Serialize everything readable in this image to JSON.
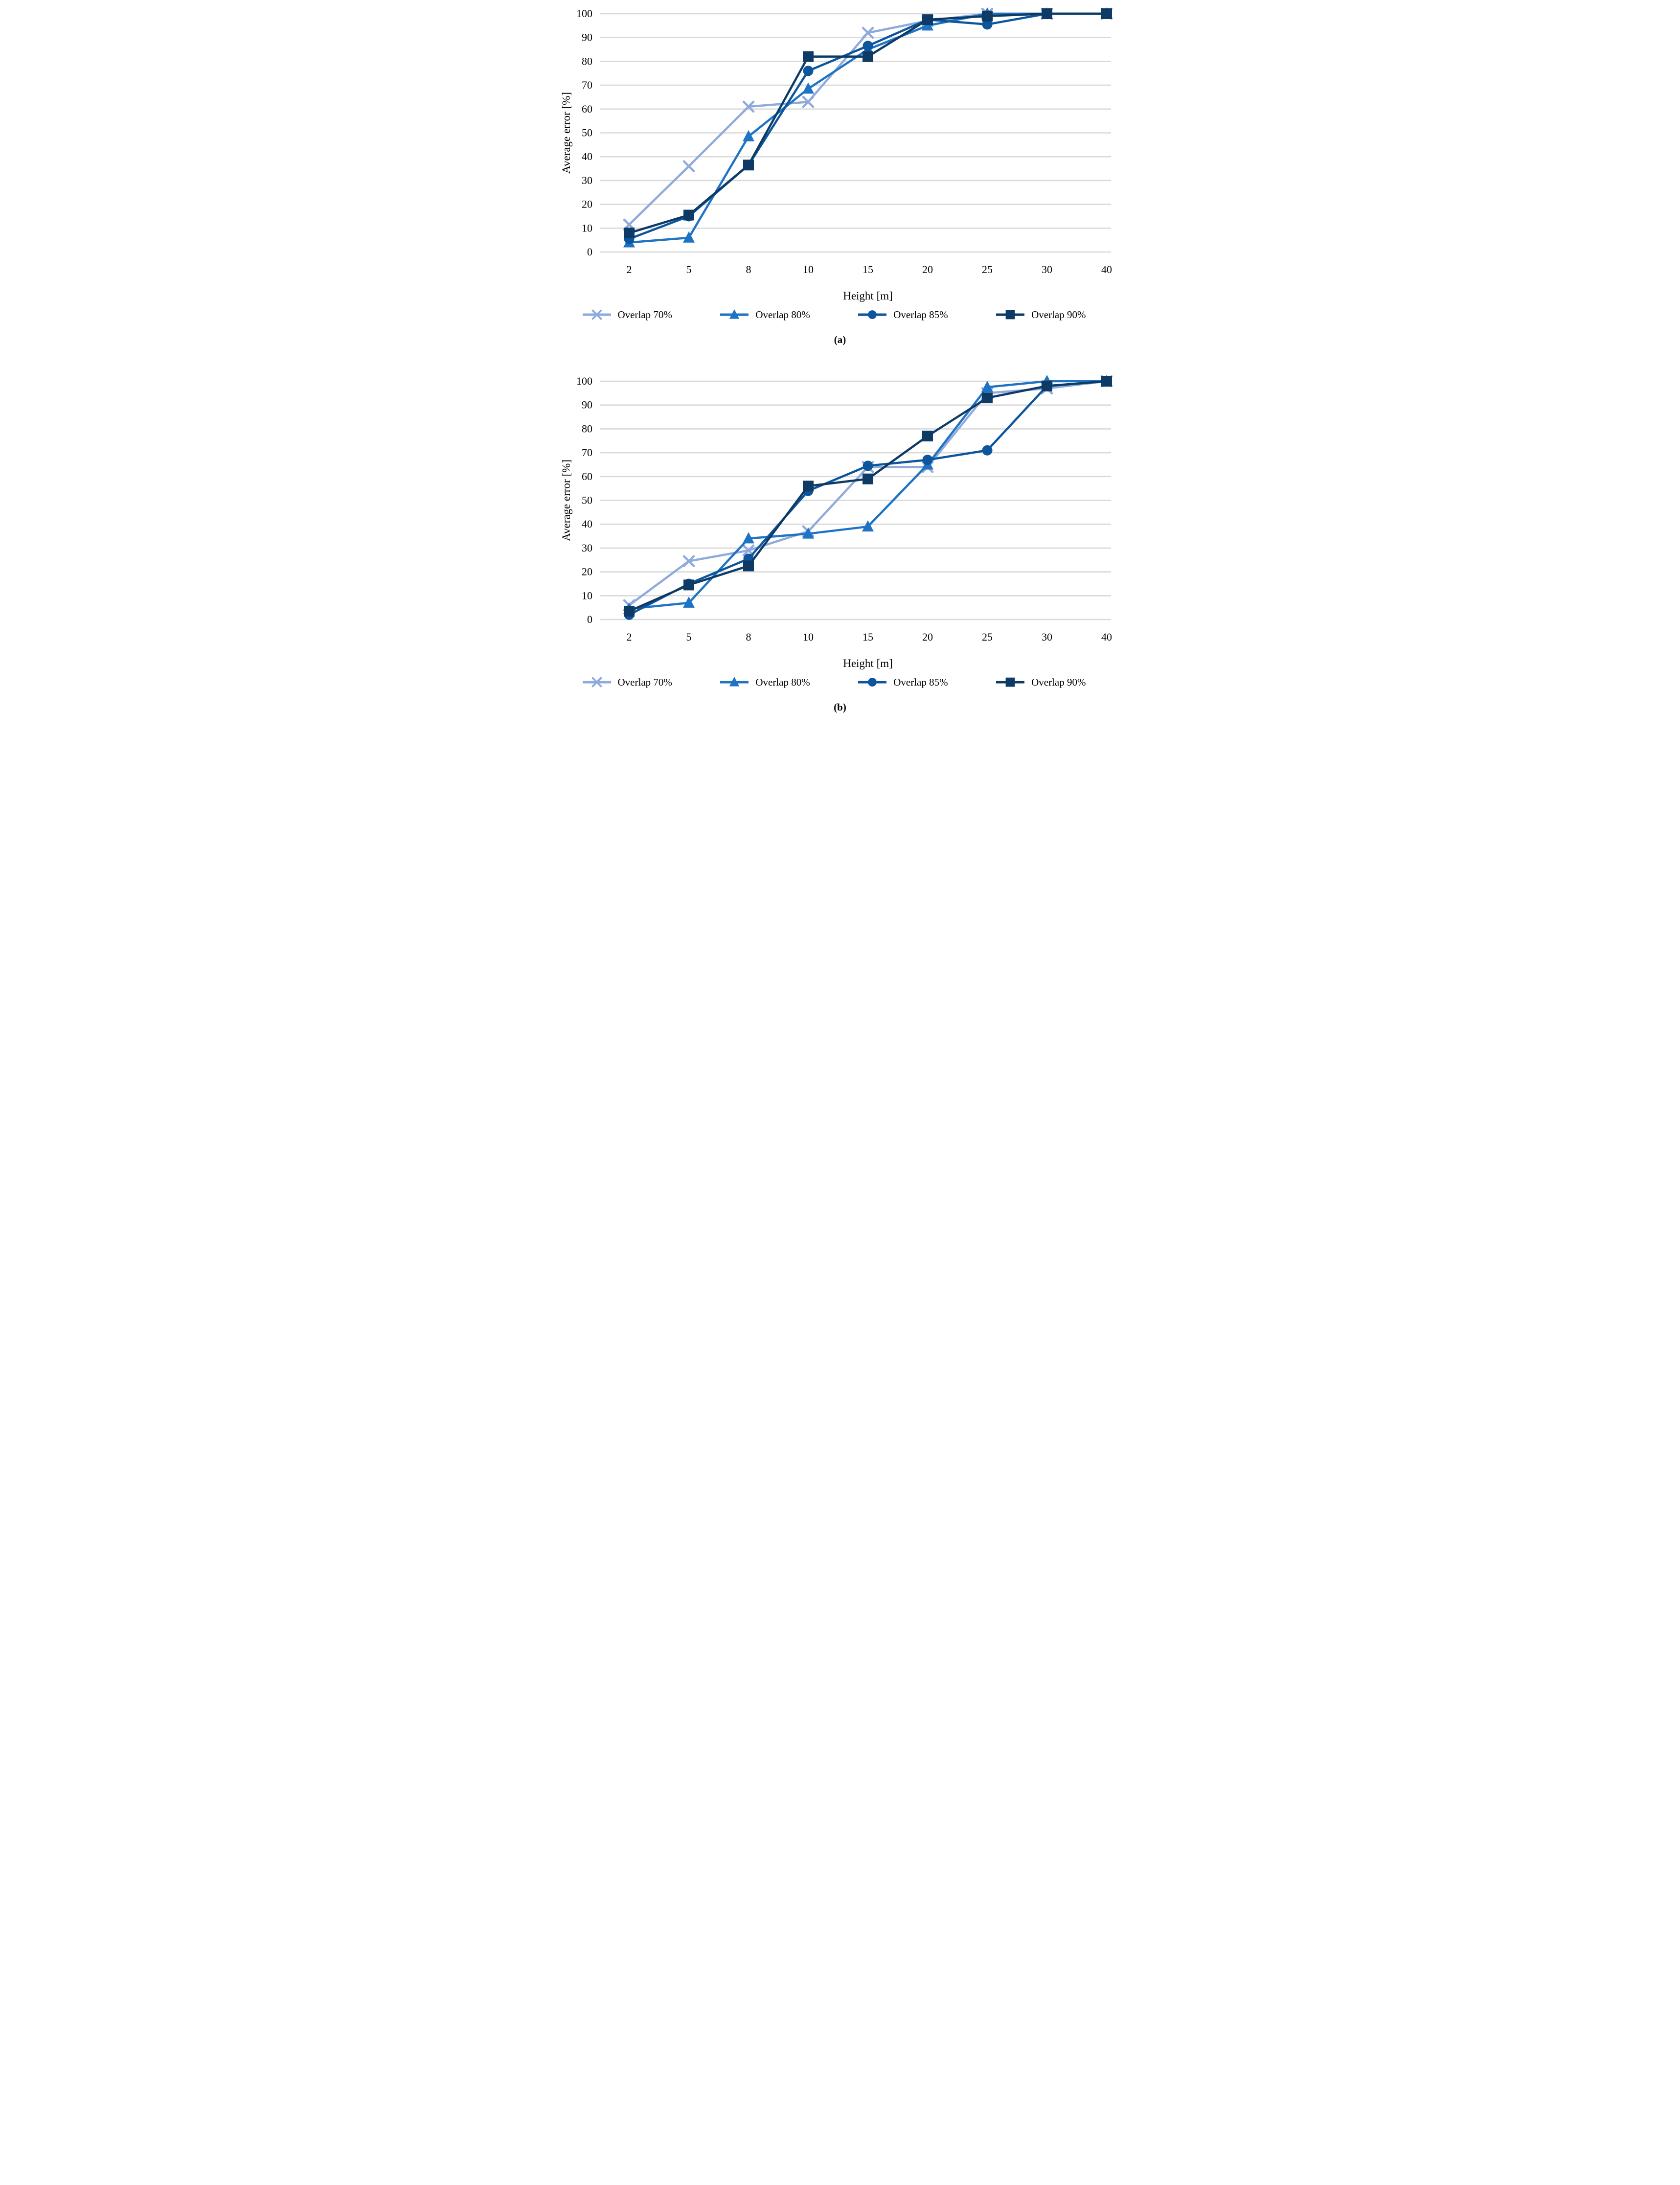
{
  "figure": {
    "grid_color": "#D9D9D9",
    "text_color": "#000000",
    "y_tick_labels": [
      "0",
      "10",
      "20",
      "30",
      "40",
      "50",
      "60",
      "70",
      "80",
      "90",
      "100"
    ],
    "x_tick_labels": [
      "2",
      "5",
      "8",
      "10",
      "15",
      "20",
      "25",
      "30",
      "40"
    ]
  },
  "chart_data": [
    {
      "type": "line",
      "caption": "(a)",
      "xlabel": "Height [m]",
      "ylabel": "Average error [%]",
      "categories": [
        2,
        5,
        8,
        10,
        15,
        20,
        25,
        30,
        40
      ],
      "ylim": [
        0,
        100
      ],
      "ytick_step": 10,
      "grid": "horizontal",
      "legend_position": "bottom",
      "series": [
        {
          "name": "Overlap 70%",
          "marker": "x",
          "color": "#8FAADC",
          "values": [
            11.5,
            36,
            61,
            63,
            92,
            97,
            100,
            100,
            100
          ]
        },
        {
          "name": "Overlap 80%",
          "marker": "triangle",
          "color": "#1E73C4",
          "values": [
            4,
            6,
            48.5,
            68.5,
            85,
            95,
            100,
            100,
            100
          ]
        },
        {
          "name": "Overlap 85%",
          "marker": "circle",
          "color": "#0D559C",
          "values": [
            5.5,
            15,
            36.5,
            76,
            86.5,
            97.5,
            95.5,
            100,
            100
          ]
        },
        {
          "name": "Overlap 90%",
          "marker": "square",
          "color": "#0D3B66",
          "values": [
            8,
            15.5,
            36.5,
            82,
            82,
            97.5,
            99,
            100,
            100
          ]
        }
      ]
    },
    {
      "type": "line",
      "caption": "(b)",
      "xlabel": "Height [m]",
      "ylabel": "Average error [%]",
      "categories": [
        2,
        5,
        8,
        10,
        15,
        20,
        25,
        30,
        40
      ],
      "ylim": [
        0,
        100
      ],
      "ytick_step": 10,
      "grid": "horizontal",
      "legend_position": "bottom",
      "series": [
        {
          "name": "Overlap 70%",
          "marker": "x",
          "color": "#8FAADC",
          "values": [
            6,
            24.5,
            29,
            37,
            64,
            64,
            95,
            97,
            100
          ]
        },
        {
          "name": "Overlap 80%",
          "marker": "triangle",
          "color": "#1E73C4",
          "values": [
            4.5,
            7,
            34,
            36,
            39,
            65,
            97.5,
            100,
            100
          ]
        },
        {
          "name": "Overlap 85%",
          "marker": "circle",
          "color": "#0D559C",
          "values": [
            2,
            15,
            25.5,
            54,
            64.5,
            67,
            71,
            98,
            100
          ]
        },
        {
          "name": "Overlap 90%",
          "marker": "square",
          "color": "#0D3B66",
          "values": [
            3.5,
            14.5,
            22.5,
            56,
            59,
            77,
            93,
            98,
            100
          ]
        }
      ]
    }
  ]
}
